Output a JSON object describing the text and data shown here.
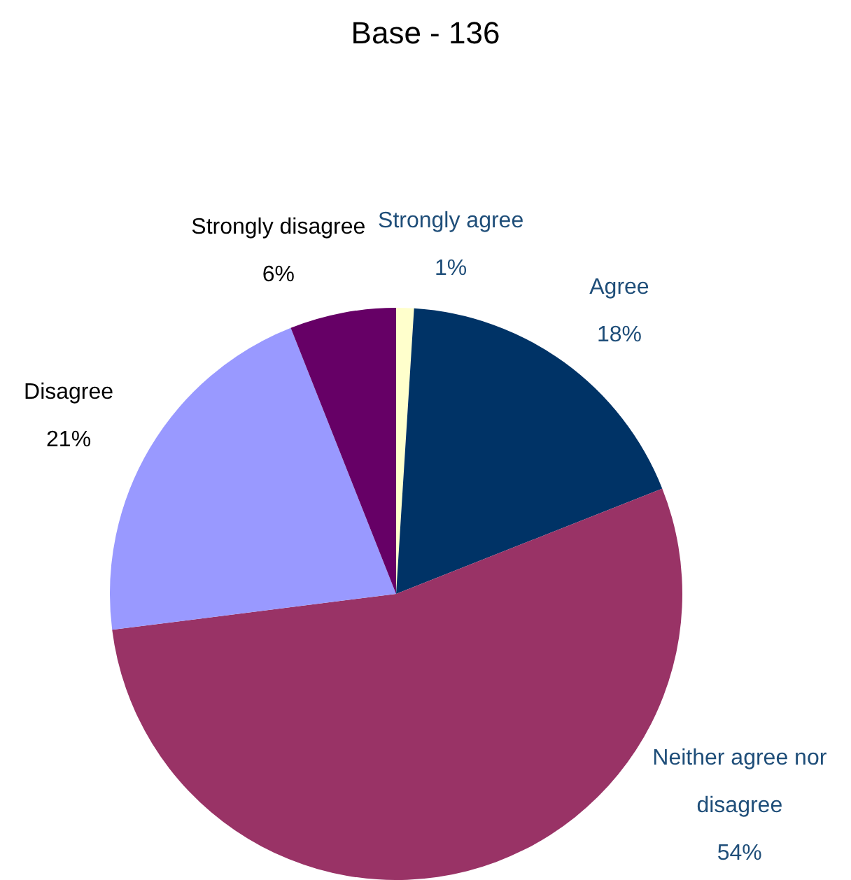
{
  "chart_data": {
    "type": "pie",
    "title": "Base - 136",
    "categories": [
      "Strongly agree",
      "Agree",
      "Neither agree nor disagree",
      "Disagree",
      "Strongly disagree"
    ],
    "values": [
      1,
      18,
      54,
      21,
      6
    ],
    "value_labels": [
      "1%",
      "18%",
      "54%",
      "21%",
      "6%"
    ],
    "colors": [
      "#ffffcc",
      "#003366",
      "#993366",
      "#9999ff",
      "#660066"
    ],
    "legend": false
  }
}
